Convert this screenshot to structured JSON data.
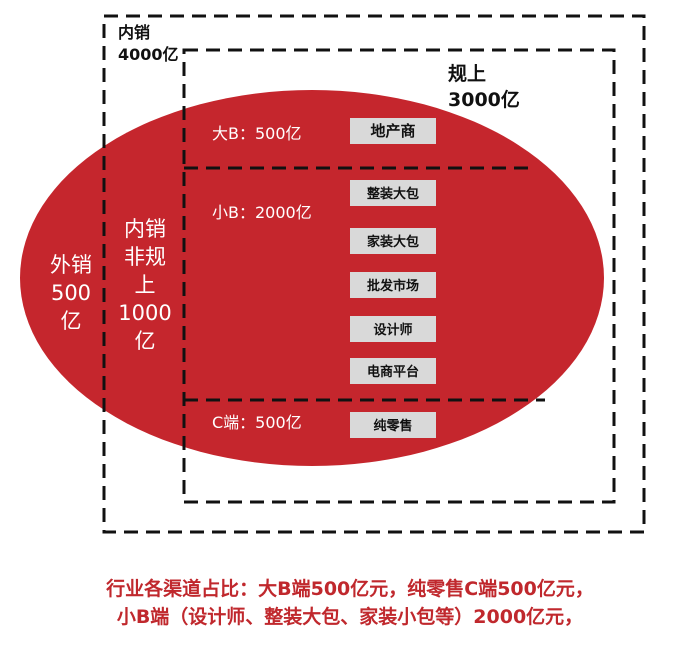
{
  "outer_box": {
    "line1": "内销",
    "line2": "4000亿"
  },
  "inner_box": {
    "line1": "规上",
    "line2": "3000亿"
  },
  "export_label": {
    "line1": "外销",
    "line2": "500",
    "line3": "亿"
  },
  "nonscale_label": {
    "line1": "内销",
    "line2": "非规",
    "line3": "上",
    "line4": "1000",
    "line5": "亿"
  },
  "segments": {
    "big_b": {
      "label": "大B：500亿",
      "channels": [
        "地产商"
      ]
    },
    "small_b": {
      "label": "小B：2000亿",
      "channels": [
        "整装大包",
        "家装大包",
        "批发市场",
        "设计师",
        "电商平台"
      ]
    },
    "c_end": {
      "label": "C端：500亿",
      "channels": [
        "纯零售"
      ]
    }
  },
  "caption": {
    "line1": "行业各渠道占比：大B端500亿元，纯零售C端500亿元，",
    "line2": "小B端（设计师、整装大包、家装小包等）2000亿元，"
  },
  "colors": {
    "ellipse": "#c5262d",
    "channel_box": "#d9d9d9",
    "caption": "#c0282d",
    "frame": "#111111"
  }
}
